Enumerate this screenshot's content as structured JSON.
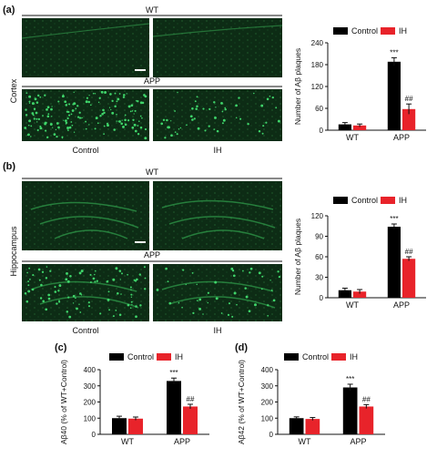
{
  "panels": {
    "a": {
      "label": "(a)",
      "region_label": "Cortex",
      "top_group": "WT",
      "bottom_group": "APP",
      "col_labels": [
        "Control",
        "IH"
      ]
    },
    "b": {
      "label": "(b)",
      "region_label": "Hippocampus",
      "top_group": "WT",
      "bottom_group": "APP",
      "col_labels": [
        "Control",
        "IH"
      ]
    },
    "c": {
      "label": "(c)"
    },
    "d": {
      "label": "(d)"
    }
  },
  "colors": {
    "control": "#000000",
    "ih": "#e8232a",
    "micrograph_bg": "#0c2a14",
    "micrograph_fg": "#3fd56a"
  },
  "chart_data": [
    {
      "id": "a",
      "type": "bar",
      "ylabel": "Number of Aβ plaques",
      "ylim": [
        0,
        240
      ],
      "yticks": [
        0,
        60,
        120,
        180,
        240
      ],
      "categories": [
        "WT",
        "APP"
      ],
      "legend_position": "top",
      "series": [
        {
          "name": "Control",
          "values": [
            16,
            188
          ],
          "errors": [
            5,
            11
          ]
        },
        {
          "name": "IH",
          "values": [
            13,
            58
          ],
          "errors": [
            4,
            14
          ]
        }
      ],
      "annotations": [
        {
          "text": "***",
          "category": 1,
          "series": 0
        },
        {
          "text": "##",
          "category": 1,
          "series": 1
        }
      ]
    },
    {
      "id": "b",
      "type": "bar",
      "ylabel": "Number of Aβ plaques",
      "ylim": [
        0,
        120
      ],
      "yticks": [
        0,
        30,
        60,
        90,
        120
      ],
      "categories": [
        "WT",
        "APP"
      ],
      "legend_position": "top",
      "series": [
        {
          "name": "Control",
          "values": [
            11,
            104
          ],
          "errors": [
            3,
            4
          ]
        },
        {
          "name": "IH",
          "values": [
            9,
            57
          ],
          "errors": [
            3,
            3
          ]
        }
      ],
      "annotations": [
        {
          "text": "***",
          "category": 1,
          "series": 0
        },
        {
          "text": "##",
          "category": 1,
          "series": 1
        }
      ]
    },
    {
      "id": "c",
      "type": "bar",
      "ylabel": "Aβ40 (% of WT+Control)",
      "ylim": [
        0,
        400
      ],
      "yticks": [
        0,
        100,
        200,
        300,
        400
      ],
      "categories": [
        "WT",
        "APP"
      ],
      "legend_position": "top",
      "series": [
        {
          "name": "Control",
          "values": [
            100,
            330
          ],
          "errors": [
            12,
            18
          ]
        },
        {
          "name": "IH",
          "values": [
            97,
            172
          ],
          "errors": [
            10,
            14
          ]
        }
      ],
      "annotations": [
        {
          "text": "***",
          "category": 1,
          "series": 0
        },
        {
          "text": "##",
          "category": 1,
          "series": 1
        }
      ]
    },
    {
      "id": "d",
      "type": "bar",
      "ylabel": "Aβ42 (% of WT+Control)",
      "ylim": [
        0,
        400
      ],
      "yticks": [
        0,
        100,
        200,
        300,
        400
      ],
      "categories": [
        "WT",
        "APP"
      ],
      "legend_position": "top",
      "series": [
        {
          "name": "Control",
          "values": [
            100,
            290
          ],
          "errors": [
            8,
            20
          ]
        },
        {
          "name": "IH",
          "values": [
            95,
            172
          ],
          "errors": [
            9,
            12
          ]
        }
      ],
      "annotations": [
        {
          "text": "***",
          "category": 1,
          "series": 0
        },
        {
          "text": "##",
          "category": 1,
          "series": 1
        }
      ]
    }
  ]
}
